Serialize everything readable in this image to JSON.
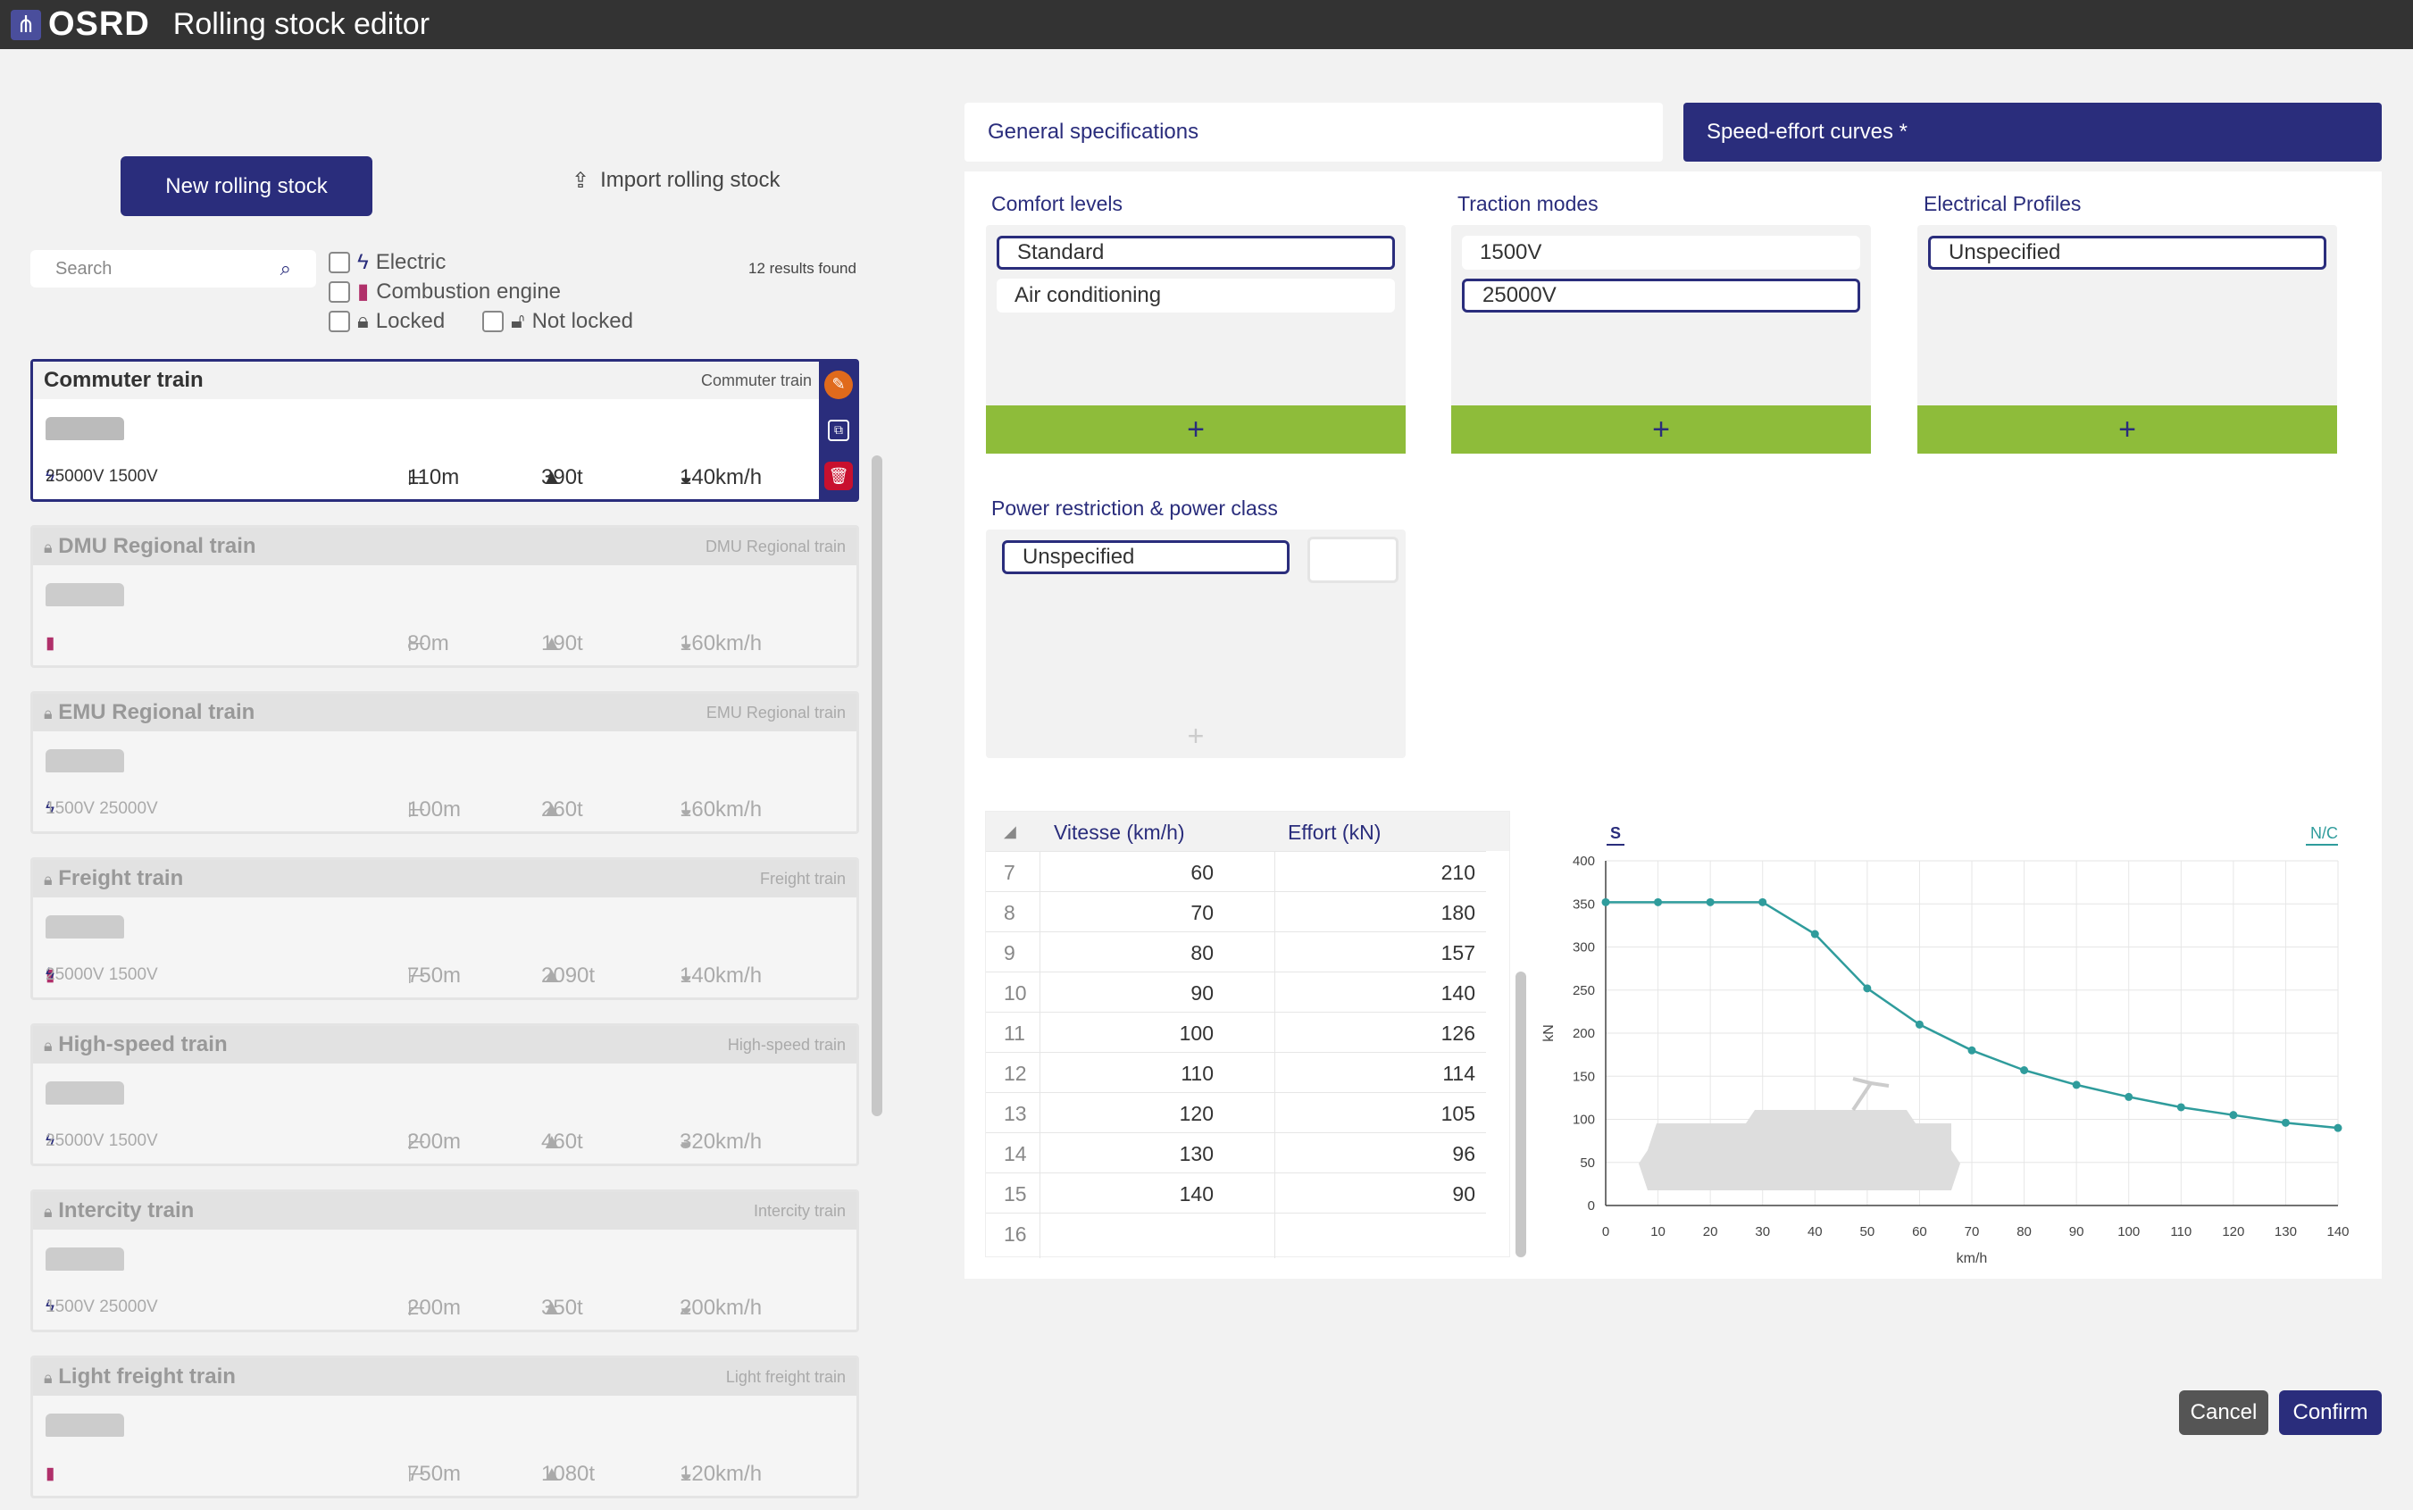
{
  "app": {
    "logo": "OSRD",
    "title": "Rolling stock editor"
  },
  "actions": {
    "new_label": "New rolling stock",
    "import_label": "Import rolling stock"
  },
  "search": {
    "placeholder": "Search",
    "results": "12 results found"
  },
  "filters": {
    "electric": "Electric",
    "combustion": "Combustion engine",
    "locked": "Locked",
    "not_locked": "Not locked"
  },
  "rolling_stocks": [
    {
      "name": "Commuter train",
      "sub": "Commuter train",
      "modes": "25000V 1500V",
      "length": "110m",
      "mass": "390t",
      "speed": "140km/h",
      "locked": false,
      "selected": true,
      "electric": true,
      "thermal": false
    },
    {
      "name": "DMU Regional train",
      "sub": "DMU Regional train",
      "modes": "",
      "length": "80m",
      "mass": "190t",
      "speed": "160km/h",
      "locked": true,
      "selected": false,
      "electric": false,
      "thermal": true
    },
    {
      "name": "EMU Regional train",
      "sub": "EMU Regional train",
      "modes": "1500V 25000V",
      "length": "100m",
      "mass": "260t",
      "speed": "160km/h",
      "locked": true,
      "selected": false,
      "electric": true,
      "thermal": false
    },
    {
      "name": "Freight train",
      "sub": "Freight train",
      "modes": "25000V 1500V",
      "length": "750m",
      "mass": "2090t",
      "speed": "140km/h",
      "locked": true,
      "selected": false,
      "electric": true,
      "thermal": true
    },
    {
      "name": "High-speed train",
      "sub": "High-speed train",
      "modes": "25000V 1500V",
      "length": "200m",
      "mass": "460t",
      "speed": "320km/h",
      "locked": true,
      "selected": false,
      "electric": true,
      "thermal": false
    },
    {
      "name": "Intercity train",
      "sub": "Intercity train",
      "modes": "1500V 25000V",
      "length": "200m",
      "mass": "350t",
      "speed": "200km/h",
      "locked": true,
      "selected": false,
      "electric": true,
      "thermal": false
    },
    {
      "name": "Light freight train",
      "sub": "Light freight train",
      "modes": "",
      "length": "750m",
      "mass": "1080t",
      "speed": "120km/h",
      "locked": true,
      "selected": false,
      "electric": false,
      "thermal": true
    }
  ],
  "tabs": {
    "general": "General specifications",
    "curves": "Speed-effort curves *"
  },
  "comfort": {
    "label": "Comfort levels",
    "items": [
      "Standard",
      "Air conditioning"
    ]
  },
  "traction": {
    "label": "Traction modes",
    "items": [
      "1500V",
      "25000V"
    ]
  },
  "electrical": {
    "label": "Electrical Profiles",
    "items": [
      "Unspecified"
    ]
  },
  "power": {
    "label": "Power restriction & power class",
    "items": [
      "Unspecified"
    ]
  },
  "add_symbol": "+",
  "table": {
    "col_speed": "Vitesse (km/h)",
    "col_effort": "Effort (kN)",
    "rows": [
      {
        "n": "7",
        "v": "60",
        "e": "210"
      },
      {
        "n": "8",
        "v": "70",
        "e": "180"
      },
      {
        "n": "9",
        "v": "80",
        "e": "157"
      },
      {
        "n": "10",
        "v": "90",
        "e": "140"
      },
      {
        "n": "11",
        "v": "100",
        "e": "126"
      },
      {
        "n": "12",
        "v": "110",
        "e": "114"
      },
      {
        "n": "13",
        "v": "120",
        "e": "105"
      },
      {
        "n": "14",
        "v": "130",
        "e": "96"
      },
      {
        "n": "15",
        "v": "140",
        "e": "90"
      },
      {
        "n": "16",
        "v": "",
        "e": ""
      }
    ]
  },
  "chart_data": {
    "type": "line",
    "comfort_tab": "S",
    "legend": "N/C",
    "xlabel": "km/h",
    "ylabel": "kN",
    "xlim": [
      0,
      140
    ],
    "ylim": [
      0,
      400
    ],
    "x_ticks": [
      0,
      10,
      20,
      30,
      40,
      50,
      60,
      70,
      80,
      90,
      100,
      110,
      120,
      130,
      140
    ],
    "y_ticks": [
      0,
      50,
      100,
      150,
      200,
      250,
      300,
      350,
      400
    ],
    "grid": true,
    "color": "#2f9c9c",
    "series": [
      {
        "x": [
          0,
          10,
          20,
          30,
          40,
          50,
          60,
          70,
          80,
          90,
          100,
          110,
          120,
          130,
          140
        ],
        "y": [
          352,
          352,
          352,
          352,
          315,
          252,
          210,
          180,
          157,
          140,
          126,
          114,
          105,
          96,
          90
        ]
      }
    ]
  },
  "footer": {
    "cancel": "Cancel",
    "confirm": "Confirm"
  }
}
